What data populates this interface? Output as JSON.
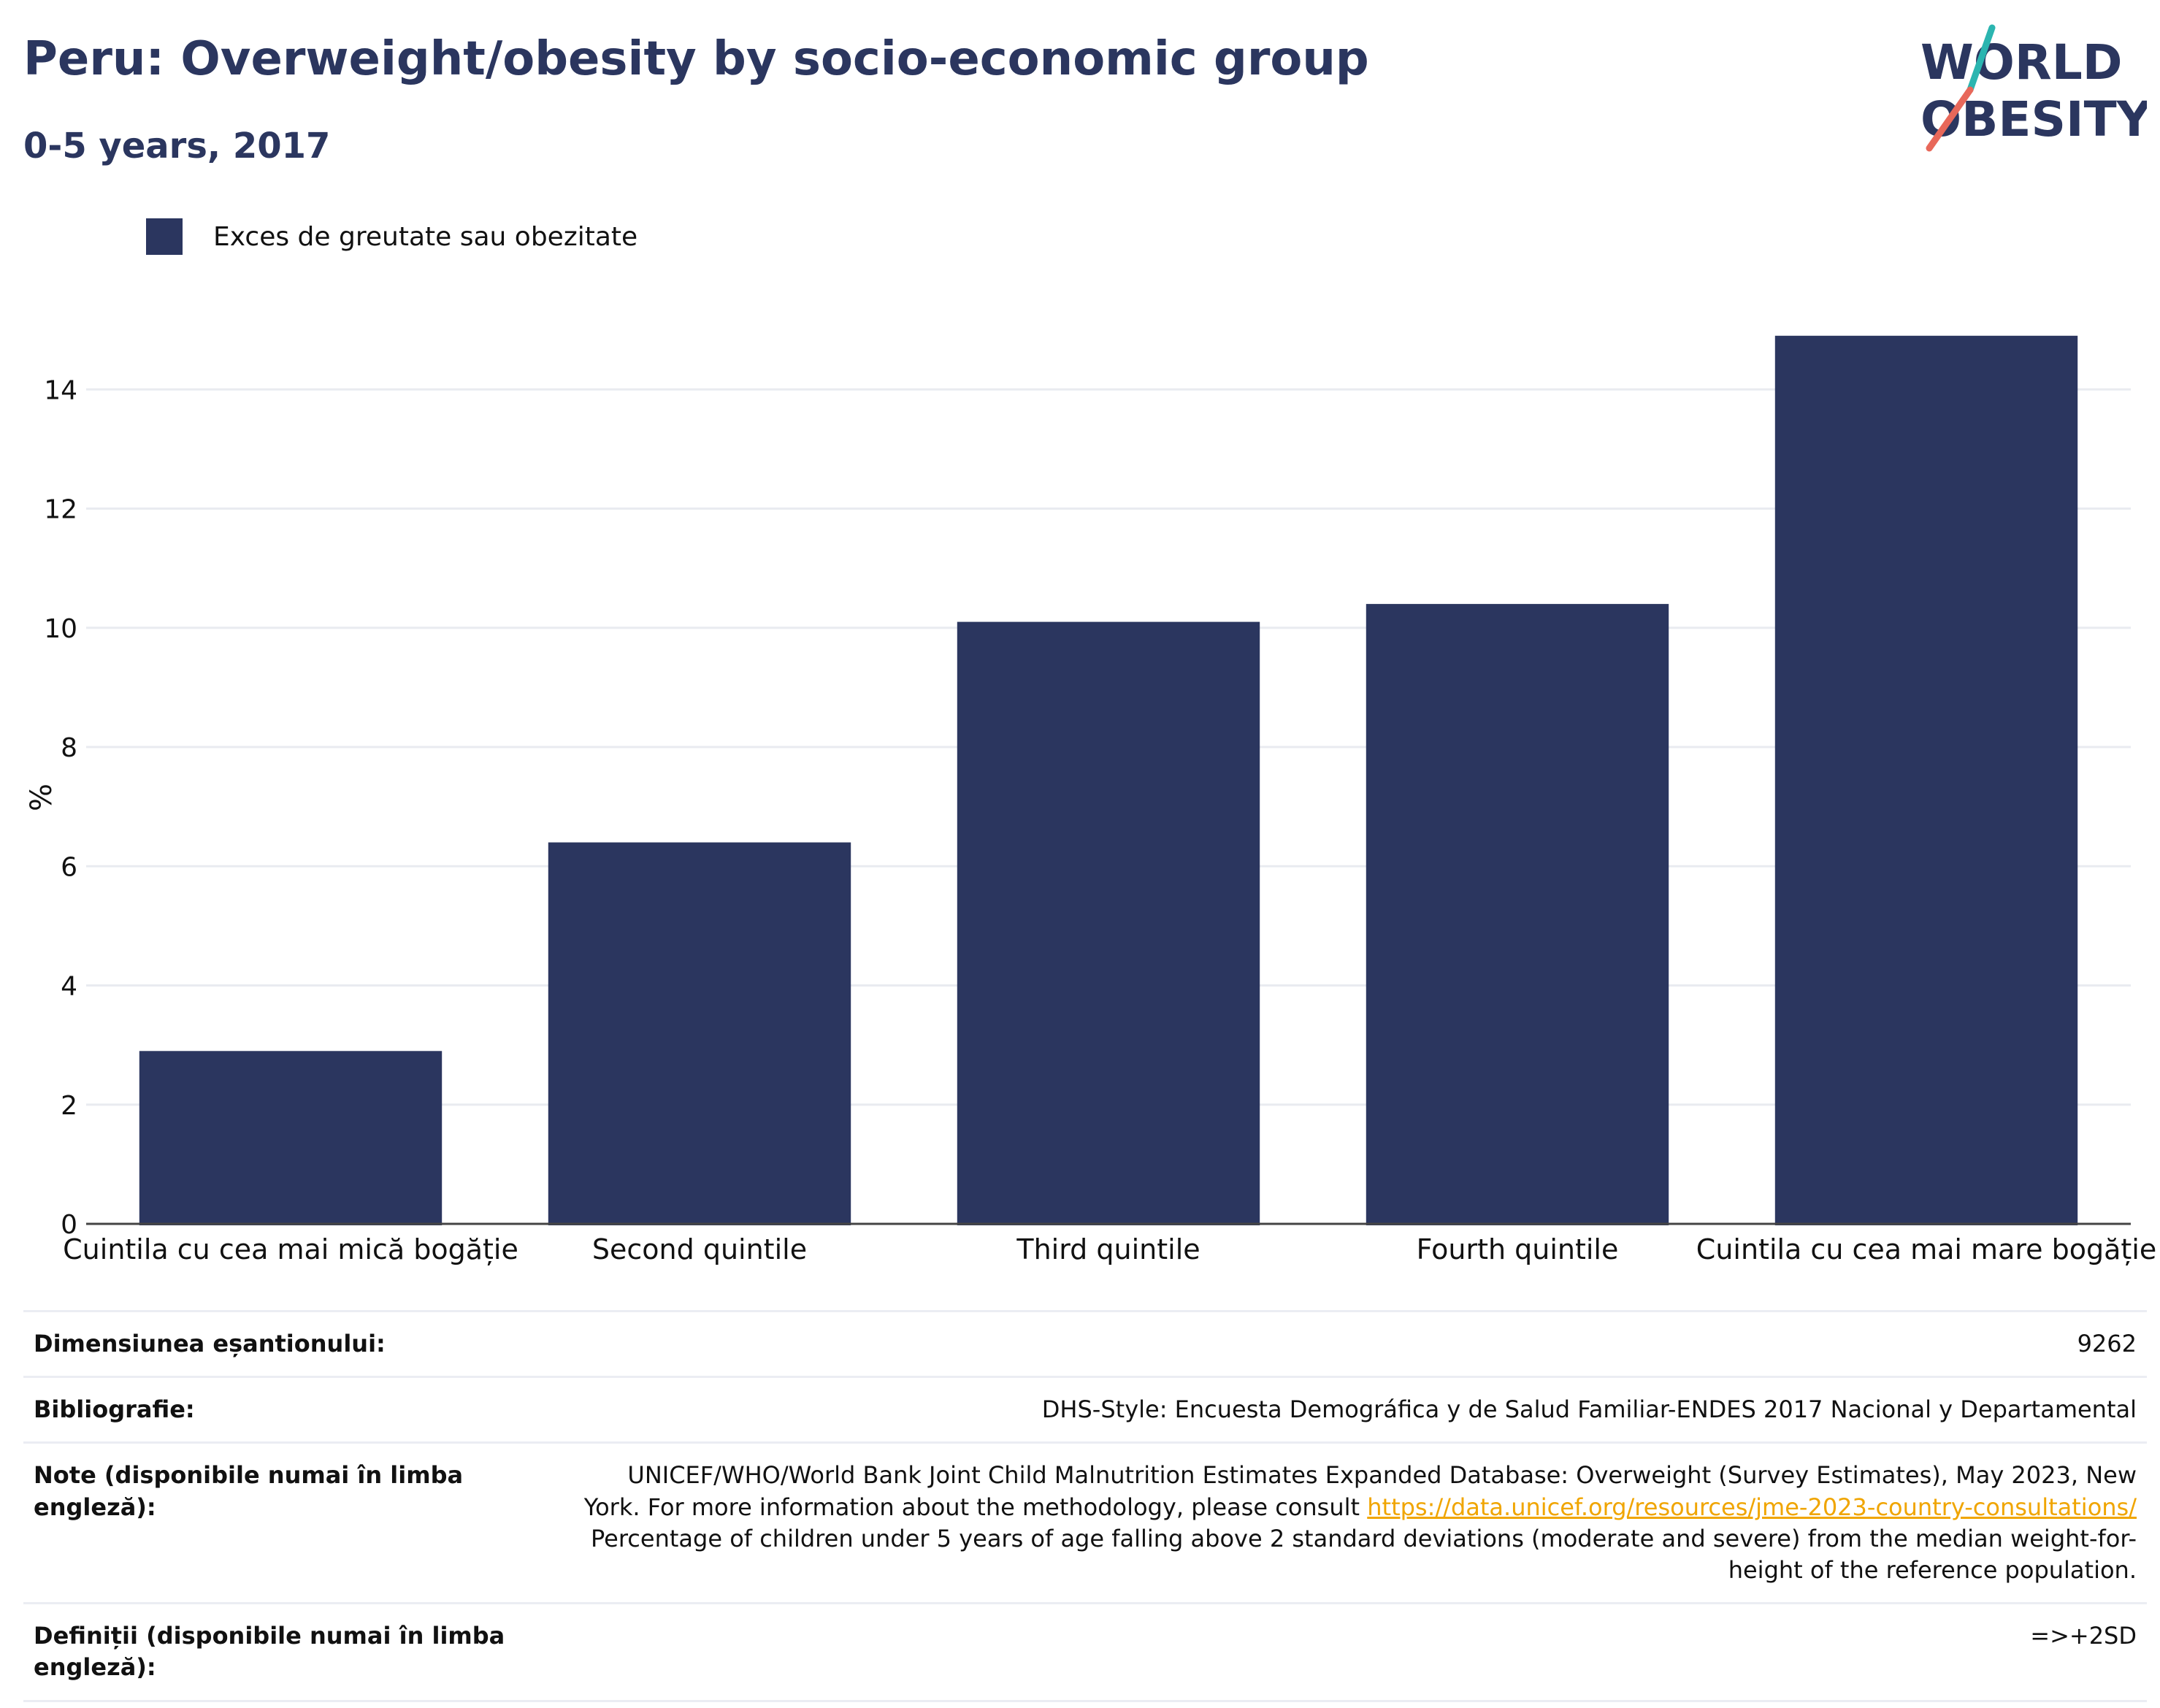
{
  "header": {
    "title": "Peru: Overweight/obesity by socio-economic group",
    "subtitle": "0-5 years, 2017"
  },
  "logo": {
    "line1": "WORLD",
    "line2": "OBESITY",
    "colors": {
      "text": "#2b365f",
      "slash_top": "#2bb5b0",
      "slash_bottom": "#e8685a"
    }
  },
  "colors": {
    "bar": "#2b365f",
    "grid": "#e9ebf0",
    "axis": "#444444",
    "link": "#f0a500"
  },
  "chart_data": {
    "type": "bar",
    "categories": [
      "Cuintila cu cea mai mică bogăție",
      "Second quintile",
      "Third quintile",
      "Fourth quintile",
      "Cuintila cu cea mai mare bogăție"
    ],
    "series": [
      {
        "name": "Exces de greutate sau obezitate",
        "values": [
          2.9,
          6.4,
          10.1,
          10.4,
          14.9
        ]
      }
    ],
    "ylabel": "%",
    "ylim": [
      0,
      16
    ],
    "yticks": [
      0,
      2,
      4,
      6,
      8,
      10,
      12,
      14
    ],
    "grid": true,
    "legend": "top-left"
  },
  "info": {
    "sample_label": "Dimensiunea eșantionului:",
    "sample_value": "9262",
    "bib_label": "Bibliografie:",
    "bib_value": "DHS-Style: Encuesta Demográfica y de Salud Familiar-ENDES 2017 Nacional y Departamental",
    "notes_label": "Note (disponibile numai în limba engleză):",
    "notes_text1": "UNICEF/WHO/World Bank Joint Child Malnutrition Estimates Expanded Database: Overweight (Survey Estimates), May 2023, New York. For more information about the methodology, please consult",
    "notes_link": "https://data.unicef.org/resources/jme-2023-country-consultations/",
    "notes_text2": "Percentage of children under 5 years of age falling above 2 standard deviations (moderate and severe) from the median weight-for-height of the reference population.",
    "def_label": "Definiții (disponibile numai în limba engleză):",
    "def_value": "=>+2SD"
  }
}
